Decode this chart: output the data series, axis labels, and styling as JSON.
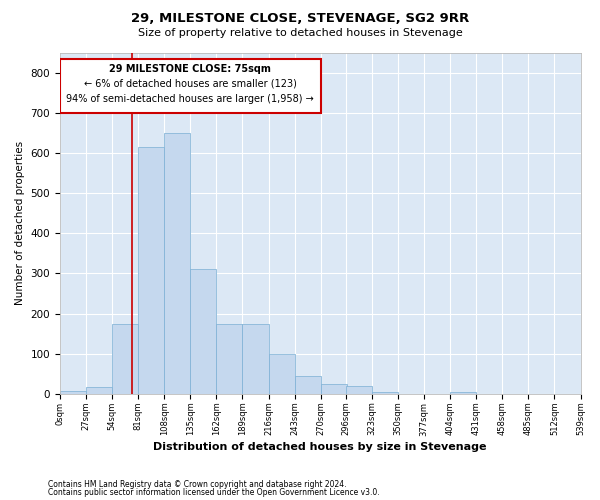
{
  "title": "29, MILESTONE CLOSE, STEVENAGE, SG2 9RR",
  "subtitle": "Size of property relative to detached houses in Stevenage",
  "xlabel": "Distribution of detached houses by size in Stevenage",
  "ylabel": "Number of detached properties",
  "bar_color": "#c5d8ee",
  "bar_edge_color": "#7aafd4",
  "bg_color": "#dce8f5",
  "grid_color": "#ffffff",
  "annotation_box_color": "#cc0000",
  "property_line_color": "#cc0000",
  "annotation_title": "29 MILESTONE CLOSE: 75sqm",
  "annotation_line1": "← 6% of detached houses are smaller (123)",
  "annotation_line2": "94% of semi-detached houses are larger (1,958) →",
  "property_sqm": 75,
  "bin_edges": [
    0,
    27,
    54,
    81,
    108,
    135,
    162,
    189,
    216,
    243,
    270,
    296,
    323,
    350,
    377,
    404,
    431,
    458,
    485,
    512,
    539
  ],
  "bin_labels": [
    "0sqm",
    "27sqm",
    "54sqm",
    "81sqm",
    "108sqm",
    "135sqm",
    "162sqm",
    "189sqm",
    "216sqm",
    "243sqm",
    "270sqm",
    "296sqm",
    "323sqm",
    "350sqm",
    "377sqm",
    "404sqm",
    "431sqm",
    "458sqm",
    "485sqm",
    "512sqm",
    "539sqm"
  ],
  "bar_heights": [
    8,
    18,
    175,
    615,
    650,
    310,
    175,
    175,
    100,
    45,
    25,
    20,
    5,
    0,
    0,
    5,
    0,
    0,
    0,
    0
  ],
  "ylim": [
    0,
    850
  ],
  "yticks": [
    0,
    100,
    200,
    300,
    400,
    500,
    600,
    700,
    800
  ],
  "footer_line1": "Contains HM Land Registry data © Crown copyright and database right 2024.",
  "footer_line2": "Contains public sector information licensed under the Open Government Licence v3.0."
}
